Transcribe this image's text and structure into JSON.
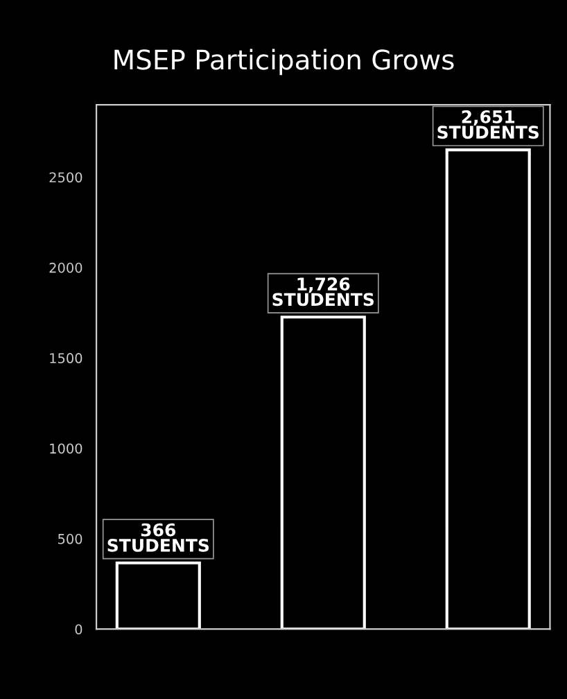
{
  "chart_data": {
    "type": "bar",
    "title": "MSEP Participation Grows",
    "categories": [
      null,
      null,
      null
    ],
    "values": [
      366,
      1726,
      2651
    ],
    "value_labels": [
      "366\nSTUDENTS",
      "1,726\nSTUDENTS",
      "2,651\nSTUDENTS"
    ],
    "color": "#000000",
    "ylim": [
      0,
      2900
    ],
    "yticks": [
      0,
      500,
      1000,
      1500,
      2000,
      2500
    ],
    "grid": false
  }
}
